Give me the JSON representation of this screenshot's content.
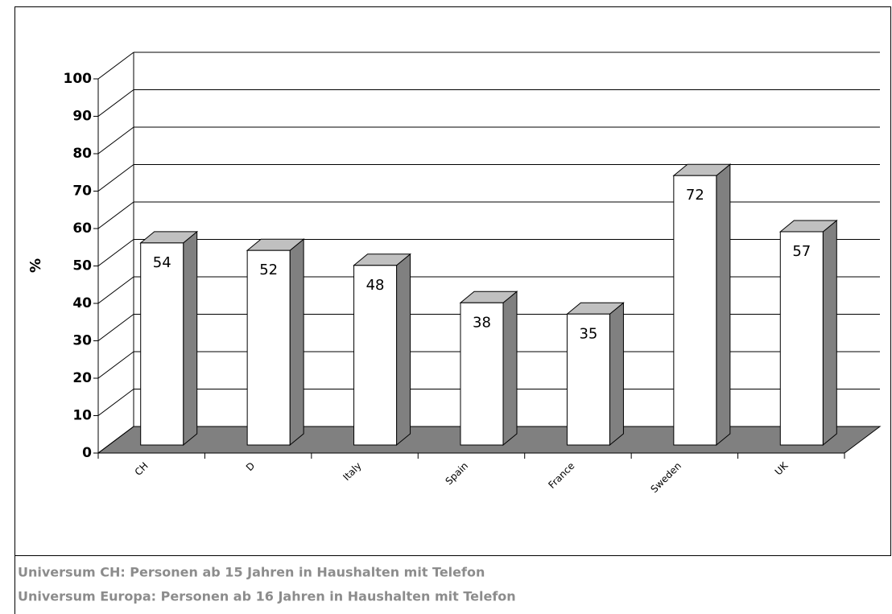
{
  "chart_data": {
    "type": "bar",
    "y_label": "%",
    "categories": [
      "CH",
      "D",
      "Italy",
      "Spain",
      "France",
      "Sweden",
      "UK"
    ],
    "values": [
      54,
      52,
      48,
      38,
      35,
      72,
      57
    ],
    "color": "#ffffff",
    "ylim": [
      0,
      100
    ],
    "yticks": [
      0,
      10,
      20,
      30,
      40,
      50,
      60,
      70,
      80,
      90,
      100
    ],
    "grid": true,
    "footnotes": [
      "Universum CH: Personen ab 15 Jahren in Haushalten mit Telefon",
      "Universum Europa: Personen ab 16 Jahren in Haushalten mit Telefon"
    ]
  }
}
